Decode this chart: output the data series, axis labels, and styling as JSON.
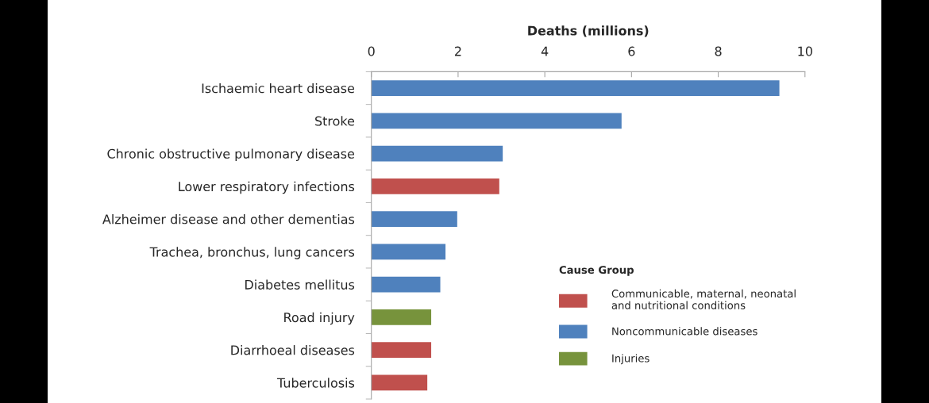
{
  "chart_data": {
    "type": "bar",
    "orientation": "horizontal",
    "stacked": true,
    "xlabel": "Deaths (millions)",
    "legend_title": "Cause Group",
    "legend": "bottom right",
    "categories": [
      "Ischaemic heart disease",
      "Stroke",
      "Chronic obstructive pulmonary disease",
      "Lower respiratory infections",
      "Alzheimer disease and other dementias",
      "Trachea, bronchus, lung cancers",
      "Diabetes mellitus",
      "Road injury",
      "Diarrhoeal diseases",
      "Tuberculosis"
    ],
    "series": [
      {
        "name": "Communicable, maternal, neonatal\nand nutritional conditions",
        "color": "#c0504d",
        "values": [
          null,
          null,
          null,
          2.95,
          null,
          null,
          null,
          null,
          1.38,
          1.29
        ]
      },
      {
        "name": "Noncommunicable diseases",
        "color": "#4f81bd",
        "values": [
          9.41,
          5.77,
          3.03,
          null,
          1.98,
          1.71,
          1.59,
          null,
          null,
          null
        ]
      },
      {
        "name": "Injuries",
        "color": "#77933c",
        "values": [
          null,
          null,
          null,
          null,
          null,
          null,
          null,
          1.38,
          null,
          null
        ]
      }
    ],
    "xlim": [
      0,
      10
    ],
    "xticks": [
      0,
      2,
      4,
      6,
      8,
      10
    ]
  }
}
